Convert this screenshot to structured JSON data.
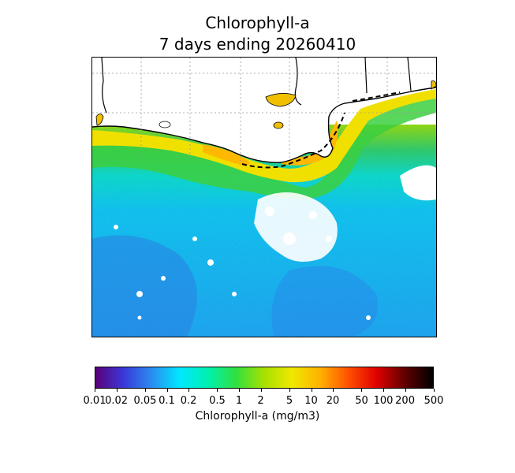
{
  "title_line1": "Chlorophyll-a",
  "title_line2": "7 days ending 20260410",
  "colorbar": {
    "label": "Chlorophyll-a (mg/m3)",
    "scale": "log",
    "range": [
      0.01,
      500
    ],
    "ticks": [
      {
        "value": 0.01,
        "label": "0.01"
      },
      {
        "value": 0.02,
        "label": "0.02"
      },
      {
        "value": 0.05,
        "label": "0.05"
      },
      {
        "value": 0.1,
        "label": "0.1"
      },
      {
        "value": 0.2,
        "label": "0.2"
      },
      {
        "value": 0.5,
        "label": "0.5"
      },
      {
        "value": 1,
        "label": "1"
      },
      {
        "value": 2,
        "label": "2"
      },
      {
        "value": 5,
        "label": "5"
      },
      {
        "value": 10,
        "label": "10"
      },
      {
        "value": 20,
        "label": "20"
      },
      {
        "value": 50,
        "label": "50"
      },
      {
        "value": 100,
        "label": "100"
      },
      {
        "value": 200,
        "label": "200"
      },
      {
        "value": 500,
        "label": "500"
      }
    ],
    "colors": [
      "#5a007a",
      "#3a38d8",
      "#2a8cf0",
      "#00e8ff",
      "#00f0b0",
      "#30e040",
      "#a8e000",
      "#f0e800",
      "#ffb000",
      "#ff5000",
      "#e00000",
      "#600000",
      "#000000"
    ]
  },
  "map": {
    "land_color": "#ffffff",
    "coastline_color": "#000000",
    "gridlines": "dotted"
  }
}
